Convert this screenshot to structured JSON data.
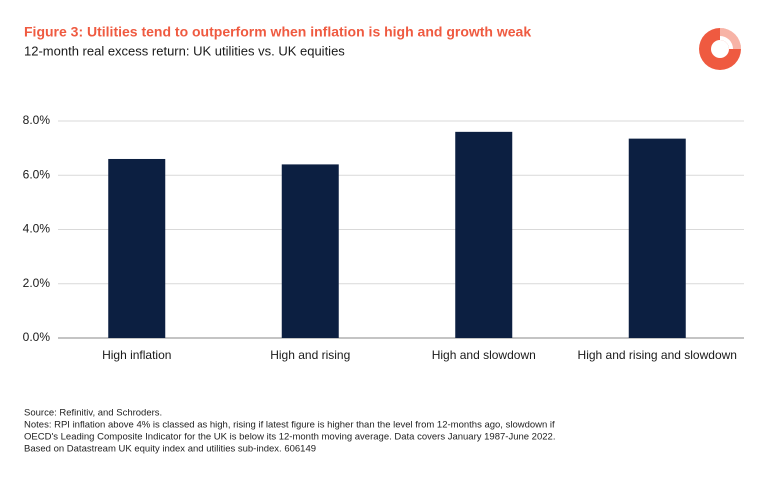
{
  "chart_data": {
    "type": "bar",
    "title": "Figure 3: Utilities tend to outperform when inflation is high and growth weak",
    "subtitle": "12-month real excess return: UK utilities vs. UK equities",
    "categories": [
      "High inflation",
      "High and rising",
      "High and slowdown",
      "High and rising and slowdown"
    ],
    "values": [
      6.6,
      6.4,
      7.6,
      7.35
    ],
    "color": "#0c1f41",
    "ylim": [
      0,
      8
    ],
    "yticks": [
      {
        "value": 0,
        "label": "0.0%"
      },
      {
        "value": 2,
        "label": "2.0%"
      },
      {
        "value": 4,
        "label": "4.0%"
      },
      {
        "value": 6,
        "label": "6.0%"
      },
      {
        "value": 8,
        "label": "8.0%"
      }
    ],
    "grid": true,
    "footnotes": [
      "Source: Refinitiv, and Schroders.",
      "Notes: RPI inflation above 4% is classed as high, rising if latest figure is higher than the level from 12-months ago, slowdown if",
      "OECD's Leading Composite Indicator for the UK is below its 12-month moving average. Data covers January 1987-June 2022.",
      "Based on Datastream UK equity index and utilities sub-index. 606149"
    ]
  }
}
